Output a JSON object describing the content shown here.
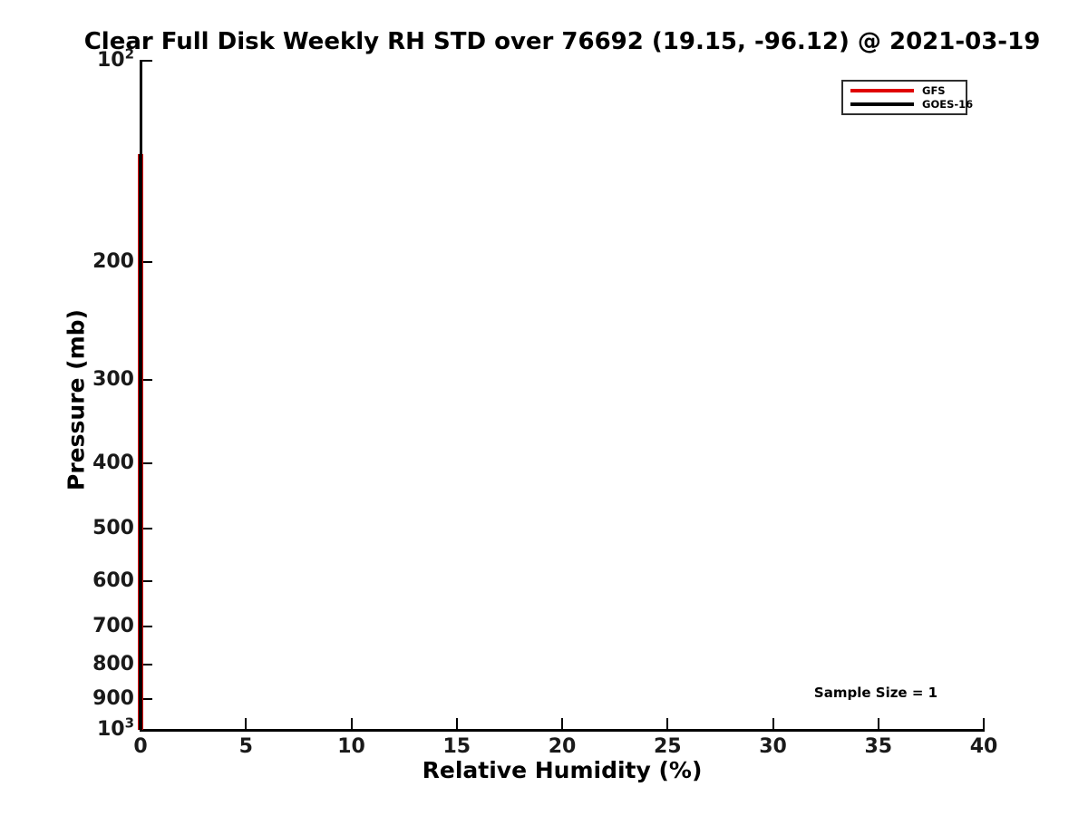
{
  "chart_data": {
    "type": "line",
    "title": "Clear Full Disk Weekly RH STD over 76692 (19.15, -96.12) @ 2021-03-19",
    "xlabel": "Relative Humidity (%)",
    "ylabel": "Pressure (mb)",
    "xlim": [
      0,
      40
    ],
    "xticks": [
      0,
      5,
      10,
      15,
      20,
      25,
      30,
      35,
      40
    ],
    "yscale": "log",
    "ylim_top": 100,
    "ylim_bottom": 1000,
    "yticks": [
      {
        "value": 100,
        "label": "10",
        "exp": "2"
      },
      {
        "value": 200,
        "label": "200"
      },
      {
        "value": 300,
        "label": "300"
      },
      {
        "value": 400,
        "label": "400"
      },
      {
        "value": 500,
        "label": "500"
      },
      {
        "value": 600,
        "label": "600"
      },
      {
        "value": 700,
        "label": "700"
      },
      {
        "value": 800,
        "label": "800"
      },
      {
        "value": 900,
        "label": "900"
      },
      {
        "value": 1000,
        "label": "10",
        "exp": "3"
      }
    ],
    "grid": false,
    "legend_position": "upper-right",
    "legend": {
      "entries": [
        {
          "label": "GFS",
          "color": "#e00000"
        },
        {
          "label": "GOES-16",
          "color": "#000000"
        }
      ]
    },
    "annotation": "Sample Size = 1",
    "series": [
      {
        "name": "GFS",
        "color": "#e00000",
        "linewidth": 6,
        "x": [
          0,
          0
        ],
        "y": [
          138,
          1000
        ]
      },
      {
        "name": "GOES-16",
        "color": "#000000",
        "linewidth": 4,
        "x": [
          0,
          0
        ],
        "y": [
          138,
          1000
        ]
      }
    ]
  }
}
